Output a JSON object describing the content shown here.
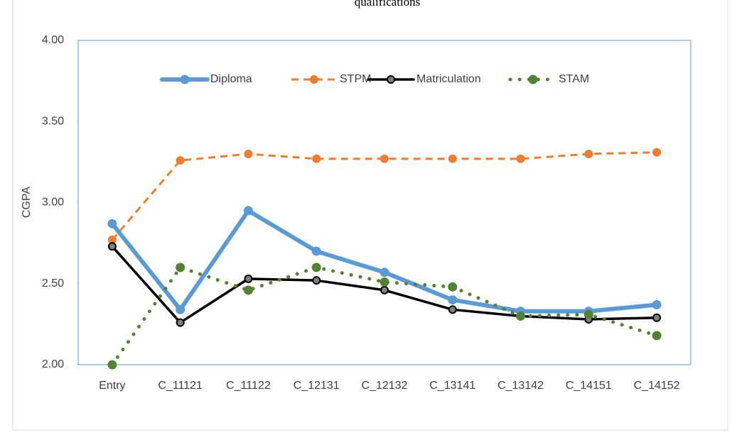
{
  "chart_data": {
    "type": "line",
    "title": "qualifications",
    "ylabel": "CGPA",
    "categories": [
      "Entry",
      "C_11121",
      "C_11122",
      "C_12131",
      "C_12132",
      "C_13141",
      "C_13142",
      "C_14151",
      "C_14152"
    ],
    "ylim": [
      2.0,
      4.0
    ],
    "yticks": [
      {
        "value": 2.0,
        "label": "2.00"
      },
      {
        "value": 2.5,
        "label": "2.50"
      },
      {
        "value": 3.0,
        "label": "3.00"
      },
      {
        "value": 3.5,
        "label": "3.50"
      },
      {
        "value": 4.0,
        "label": "4.00"
      }
    ],
    "series": [
      {
        "name": "Diploma",
        "color": "#5b9bd5",
        "values": [
          2.87,
          2.34,
          2.95,
          2.7,
          2.57,
          2.4,
          2.33,
          2.33,
          2.37
        ]
      },
      {
        "name": "STPM",
        "color": "#ed7d31",
        "values": [
          2.77,
          3.26,
          3.3,
          3.27,
          3.27,
          3.27,
          3.27,
          3.3,
          3.31
        ]
      },
      {
        "name": "Matriculation",
        "color": "#000000",
        "values": [
          2.73,
          2.26,
          2.53,
          2.52,
          2.46,
          2.34,
          2.3,
          2.28,
          2.29
        ]
      },
      {
        "name": "STAM",
        "color": "#548235",
        "values": [
          2.0,
          2.6,
          2.46,
          2.6,
          2.51,
          2.48,
          2.3,
          2.31,
          2.18
        ]
      }
    ]
  }
}
